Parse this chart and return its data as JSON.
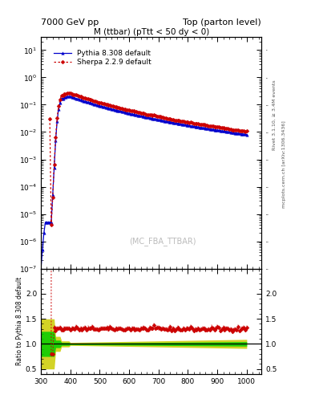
{
  "title_left": "7000 GeV pp",
  "title_right": "Top (parton level)",
  "plot_title": "M (ttbar) (pTtt < 50 dy < 0)",
  "watermark": "(MC_FBA_TTBAR)",
  "right_label1": "Rivet 3.1.10, ≥ 3.4M events",
  "right_label2": "mcplots.cern.ch [arXiv:1306.3436]",
  "ylabel_ratio": "Ratio to Pythia 8.308 default",
  "xlim": [
    300,
    1050
  ],
  "ylim_main": [
    1e-07,
    30
  ],
  "ylim_ratio": [
    0.4,
    2.5
  ],
  "pythia_color": "#0000cc",
  "sherpa_color": "#cc0000",
  "band_green": "#00cc00",
  "band_yellow": "#cccc00",
  "ratio_line_y": 1.0
}
